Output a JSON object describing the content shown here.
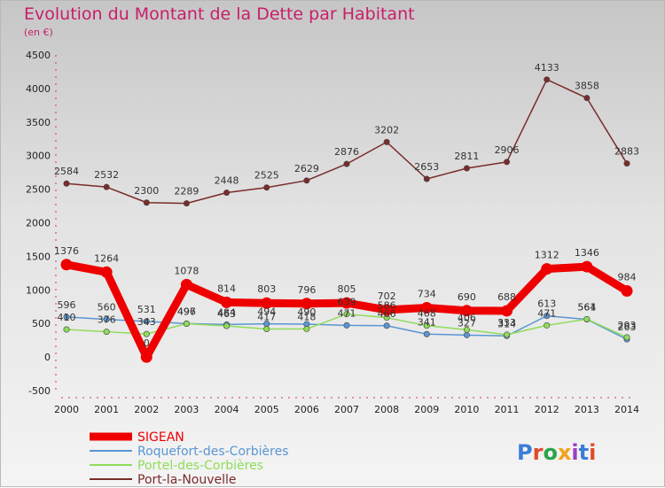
{
  "title": "Evolution du Montant de la Dette par Habitant",
  "subtitle": "(en €)",
  "brand": "Proxiti",
  "chart_data": {
    "type": "line",
    "title": "Evolution du Montant de la Dette par Habitant",
    "subtitle": "(en €)",
    "xlabel": "",
    "ylabel": "",
    "ylim": [
      -500,
      4500
    ],
    "yticks": [
      -500,
      0,
      500,
      1000,
      1500,
      2000,
      2500,
      3000,
      3500,
      4000,
      4500
    ],
    "grid": false,
    "legend_position": "bottom-left",
    "categories": [
      "2000",
      "2001",
      "2002",
      "2003",
      "2004",
      "2005",
      "2006",
      "2007",
      "2008",
      "2009",
      "2010",
      "2011",
      "2012",
      "2013",
      "2014"
    ],
    "series": [
      {
        "name": "SIGEAN",
        "color": "#ee0000",
        "width": 9,
        "labeled": true,
        "values": [
          1376,
          1264,
          0,
          1078,
          814,
          803,
          796,
          805,
          702,
          734,
          690,
          688,
          1312,
          1346,
          984
        ]
      },
      {
        "name": "Roquefort-des-Corbières",
        "color": "#5a96d2",
        "width": 1.5,
        "labeled": true,
        "values": [
          596,
          560,
          531,
          497,
          484,
          494,
          490,
          471,
          466,
          341,
          327,
          314,
          613,
          561,
          263
        ]
      },
      {
        "name": "Portel-des-Corbières",
        "color": "#8fdc5a",
        "width": 1.5,
        "labeled": true,
        "values": [
          410,
          376,
          343,
          496,
          463,
          417,
          418,
          639,
          586,
          468,
          406,
          333,
          471,
          564,
          293
        ]
      },
      {
        "name": "Port-la-Nouvelle",
        "color": "#7a2b2b",
        "width": 1.5,
        "labeled": true,
        "values": [
          2584,
          2532,
          2300,
          2289,
          2448,
          2525,
          2629,
          2876,
          3202,
          2653,
          2811,
          2906,
          4133,
          3858,
          2883
        ]
      }
    ]
  }
}
